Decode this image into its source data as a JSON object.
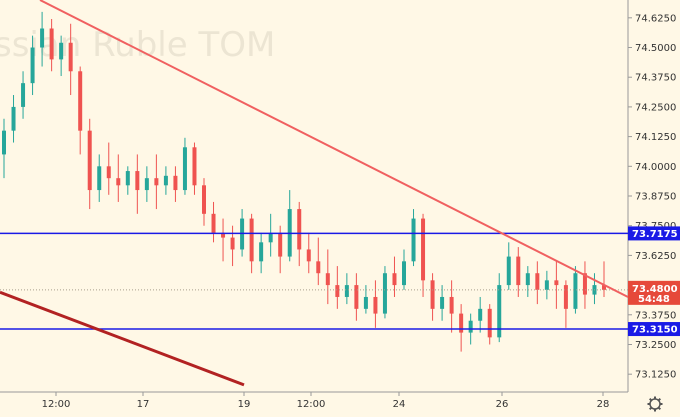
{
  "chart_data": {
    "type": "candlestick",
    "watermark": "ssian Ruble TOM",
    "price_ticks": [
      "74.6250",
      "74.5000",
      "74.3750",
      "74.2500",
      "74.1250",
      "74.0000",
      "73.8750",
      "73.7500",
      "73.6250",
      "73.5000",
      "73.3750",
      "73.2500",
      "73.1250"
    ],
    "time_ticks": [
      "12:00",
      "17",
      "19",
      "12:00",
      "24",
      "26",
      "28"
    ],
    "ylim": [
      73.05,
      74.7
    ],
    "levels": [
      {
        "name": "upper-support-line",
        "value": 73.7175,
        "label": "73.7175",
        "color": "#1a1ae6"
      },
      {
        "name": "lower-support-line",
        "value": 73.315,
        "label": "73.3150",
        "color": "#1a1ae6"
      }
    ],
    "current_price": {
      "value": 73.48,
      "label": "73.4800",
      "countdown": "54:48",
      "color": "#e6493a"
    },
    "trendlines": [
      {
        "name": "upper-trendline",
        "from_price": 74.7,
        "to_price": 73.45,
        "color": "#f06060"
      },
      {
        "name": "lower-trendline",
        "from_price": 73.47,
        "to_price": 73.08,
        "color": "#b22222"
      }
    ],
    "candles": [
      [
        74.05,
        74.2,
        74.15,
        73.95
      ],
      [
        74.15,
        74.3,
        74.25,
        74.1
      ],
      [
        74.25,
        74.4,
        74.35,
        74.2
      ],
      [
        74.35,
        74.55,
        74.5,
        74.3
      ],
      [
        74.5,
        74.65,
        74.58,
        74.42
      ],
      [
        74.58,
        74.62,
        74.45,
        74.4
      ],
      [
        74.45,
        74.55,
        74.52,
        74.38
      ],
      [
        74.52,
        74.6,
        74.4,
        74.3
      ],
      [
        74.4,
        74.42,
        74.15,
        74.05
      ],
      [
        74.15,
        74.2,
        73.9,
        73.82
      ],
      [
        73.9,
        74.05,
        74.0,
        73.85
      ],
      [
        74.0,
        74.1,
        73.95,
        73.88
      ],
      [
        73.95,
        74.05,
        73.92,
        73.85
      ],
      [
        73.92,
        74.0,
        73.98,
        73.88
      ],
      [
        73.98,
        74.05,
        73.9,
        73.8
      ],
      [
        73.9,
        74.0,
        73.95,
        73.85
      ],
      [
        73.95,
        74.05,
        73.92,
        73.82
      ],
      [
        73.92,
        74.0,
        73.96,
        73.88
      ],
      [
        73.96,
        74.0,
        73.9,
        73.85
      ],
      [
        73.9,
        74.12,
        74.08,
        73.88
      ],
      [
        74.08,
        74.1,
        73.92,
        73.88
      ],
      [
        73.92,
        73.95,
        73.8,
        73.75
      ],
      [
        73.8,
        73.85,
        73.72,
        73.68
      ],
      [
        73.72,
        73.78,
        73.7,
        73.6
      ],
      [
        73.7,
        73.75,
        73.65,
        73.58
      ],
      [
        73.65,
        73.82,
        73.78,
        73.62
      ],
      [
        73.78,
        73.8,
        73.6,
        73.55
      ],
      [
        73.6,
        73.72,
        73.68,
        73.55
      ],
      [
        73.68,
        73.8,
        73.72,
        73.62
      ],
      [
        73.72,
        73.75,
        73.62,
        73.55
      ],
      [
        73.62,
        73.9,
        73.82,
        73.6
      ],
      [
        73.82,
        73.85,
        73.65,
        73.58
      ],
      [
        73.65,
        73.72,
        73.6,
        73.55
      ],
      [
        73.6,
        73.7,
        73.55,
        73.5
      ],
      [
        73.55,
        73.65,
        73.5,
        73.42
      ],
      [
        73.5,
        73.58,
        73.45,
        73.4
      ],
      [
        73.45,
        73.55,
        73.5,
        73.42
      ],
      [
        73.5,
        73.55,
        73.4,
        73.35
      ],
      [
        73.4,
        73.5,
        73.45,
        73.38
      ],
      [
        73.45,
        73.52,
        73.38,
        73.32
      ],
      [
        73.38,
        73.58,
        73.55,
        73.36
      ],
      [
        73.55,
        73.62,
        73.5,
        73.45
      ],
      [
        73.5,
        73.65,
        73.6,
        73.48
      ],
      [
        73.6,
        73.82,
        73.78,
        73.58
      ],
      [
        73.78,
        73.8,
        73.52,
        73.45
      ],
      [
        73.52,
        73.55,
        73.4,
        73.35
      ],
      [
        73.4,
        73.5,
        73.45,
        73.35
      ],
      [
        73.45,
        73.52,
        73.38,
        73.3
      ],
      [
        73.38,
        73.42,
        73.3,
        73.22
      ],
      [
        73.3,
        73.38,
        73.35,
        73.25
      ],
      [
        73.35,
        73.45,
        73.4,
        73.3
      ],
      [
        73.4,
        73.42,
        73.28,
        73.25
      ],
      [
        73.28,
        73.55,
        73.5,
        73.26
      ],
      [
        73.5,
        73.68,
        73.62,
        73.48
      ],
      [
        73.62,
        73.66,
        73.5,
        73.45
      ],
      [
        73.5,
        73.58,
        73.55,
        73.45
      ],
      [
        73.55,
        73.6,
        73.48,
        73.42
      ],
      [
        73.48,
        73.56,
        73.52,
        73.44
      ],
      [
        73.52,
        73.6,
        73.5,
        73.4
      ],
      [
        73.5,
        73.52,
        73.4,
        73.32
      ],
      [
        73.4,
        73.58,
        73.55,
        73.38
      ],
      [
        73.55,
        73.6,
        73.46,
        73.4
      ],
      [
        73.46,
        73.55,
        73.5,
        73.42
      ],
      [
        73.5,
        73.6,
        73.48,
        73.45
      ]
    ]
  }
}
